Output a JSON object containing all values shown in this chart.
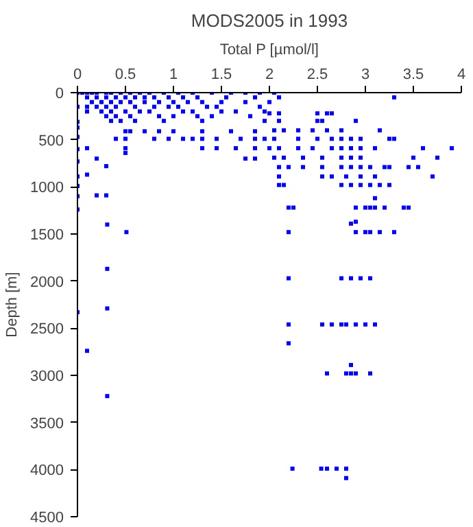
{
  "chart_data": {
    "type": "scatter",
    "title": "MODS2005 in 1993",
    "xlabel": "Total P [µmol/l]",
    "ylabel": "Depth [m]",
    "xlim": [
      0,
      4
    ],
    "ylim": [
      4500,
      0
    ],
    "xticks": [
      0,
      0.5,
      1,
      1.5,
      2,
      2.5,
      3,
      3.5,
      4
    ],
    "yticks": [
      0,
      500,
      1000,
      1500,
      2000,
      2500,
      3000,
      3500,
      4000,
      4500
    ],
    "grid": false,
    "marker": "square",
    "series": [
      {
        "color": "#0000ff",
        "x": [
          0.05,
          0.1,
          0.15,
          0.2,
          0.3,
          0.35,
          0.45,
          0.55,
          0.65,
          0.75,
          0.9,
          1.05,
          1.2,
          1.4,
          1.6,
          1.75,
          1.9,
          2.05,
          0.1,
          0.2,
          0.3,
          0.4,
          0.5,
          0.6,
          0.7,
          0.8,
          0.95,
          1.1,
          1.25,
          1.55,
          1.85,
          2.1,
          3.3,
          0.15,
          0.25,
          0.35,
          0.45,
          0.55,
          0.7,
          0.85,
          1.0,
          1.15,
          1.3,
          1.5,
          1.75,
          2.0,
          0.1,
          0.2,
          0.3,
          0.4,
          0.6,
          0.8,
          0.95,
          1.05,
          1.35,
          1.45,
          1.9,
          0.1,
          0.25,
          0.35,
          0.5,
          0.65,
          0.75,
          1.1,
          1.2,
          1.5,
          1.65,
          1.95,
          2.0,
          2.1,
          2.5,
          2.6,
          2.65,
          0.3,
          0.4,
          0.55,
          0.85,
          1.0,
          1.25,
          1.4,
          1.8,
          0.35,
          0.45,
          0.6,
          0.9,
          1.3,
          1.95,
          2.1,
          2.5,
          2.55,
          2.9,
          0.5,
          0.55,
          0.7,
          0.85,
          1.0,
          1.3,
          1.6,
          1.85,
          2.05,
          2.15,
          2.3,
          2.45,
          2.6,
          2.75,
          3.15,
          0.4,
          0.5,
          0.8,
          0.95,
          1.1,
          1.2,
          1.3,
          1.45,
          1.7,
          1.85,
          1.95,
          2.05,
          2.3,
          2.5,
          2.65,
          2.75,
          2.85,
          2.95,
          3.25,
          3.3,
          0.1,
          0.5,
          1.3,
          1.45,
          1.65,
          1.85,
          2.0,
          2.1,
          2.3,
          2.45,
          2.65,
          2.75,
          2.85,
          2.95,
          3.1,
          3.6,
          3.9,
          0.5,
          0.2,
          1.75,
          1.85,
          2.05,
          2.15,
          2.35,
          2.55,
          2.75,
          2.85,
          2.95,
          3.5,
          3.75,
          0.3,
          0.1,
          2.1,
          2.2,
          2.35,
          2.55,
          2.75,
          2.85,
          2.95,
          3.05,
          3.2,
          3.25,
          3.45,
          3.55,
          2.1,
          2.55,
          2.65,
          2.8,
          2.95,
          3.1,
          3.7,
          2.1,
          2.15,
          2.75,
          2.85,
          2.95,
          3.05,
          3.15,
          3.25,
          0.2,
          0.3,
          3.1,
          2.2,
          2.25,
          2.9,
          3.0,
          3.05,
          3.1,
          3.2,
          3.4,
          3.45,
          2.9,
          2.85,
          0.31,
          0.51,
          2.2,
          2.9,
          3.0,
          3.05,
          3.15,
          3.3,
          0.31,
          2.2,
          2.75,
          2.85,
          2.95,
          3.05,
          0.0,
          0.31,
          2.2,
          2.55,
          2.65,
          2.75,
          2.8,
          2.9,
          3.0,
          3.1,
          2.2,
          0.1,
          2.85,
          2.6,
          2.8,
          2.85,
          2.9,
          3.05,
          0.31,
          2.24,
          2.54,
          2.6,
          2.7,
          2.8,
          2.8,
          0,
          0,
          0,
          0,
          0,
          0,
          0,
          0,
          0,
          0,
          0
        ],
        "values": [
          0,
          0,
          0,
          0,
          0,
          0,
          0,
          0,
          0,
          0,
          0,
          0,
          0,
          0,
          0,
          0,
          0,
          0,
          50,
          50,
          50,
          50,
          50,
          50,
          50,
          50,
          50,
          50,
          50,
          50,
          50,
          50,
          50,
          100,
          100,
          100,
          100,
          100,
          100,
          100,
          100,
          100,
          100,
          100,
          100,
          100,
          150,
          150,
          150,
          150,
          150,
          150,
          150,
          150,
          150,
          150,
          150,
          200,
          200,
          200,
          200,
          200,
          200,
          200,
          200,
          200,
          200,
          200,
          220,
          220,
          220,
          220,
          220,
          250,
          250,
          250,
          250,
          250,
          250,
          250,
          250,
          300,
          300,
          300,
          300,
          300,
          300,
          300,
          300,
          300,
          300,
          410,
          410,
          410,
          410,
          410,
          410,
          410,
          410,
          400,
          400,
          400,
          400,
          400,
          400,
          400,
          490,
          490,
          490,
          490,
          490,
          490,
          490,
          490,
          490,
          490,
          490,
          490,
          490,
          490,
          490,
          490,
          490,
          490,
          490,
          490,
          590,
          590,
          590,
          590,
          590,
          590,
          590,
          590,
          590,
          590,
          590,
          590,
          590,
          590,
          590,
          590,
          590,
          640,
          700,
          700,
          700,
          690,
          690,
          690,
          690,
          690,
          690,
          690,
          690,
          690,
          780,
          870,
          790,
          790,
          790,
          790,
          790,
          790,
          790,
          790,
          790,
          790,
          790,
          790,
          890,
          890,
          890,
          890,
          890,
          890,
          890,
          980,
          980,
          980,
          980,
          980,
          980,
          980,
          980,
          1090,
          1090,
          1120,
          1220,
          1220,
          1220,
          1220,
          1220,
          1220,
          1220,
          1220,
          1220,
          1370,
          1390,
          1400,
          1480,
          1480,
          1480,
          1480,
          1480,
          1480,
          1480,
          1870,
          1970,
          1970,
          1970,
          1970,
          1970,
          2330,
          2290,
          2460,
          2460,
          2460,
          2460,
          2460,
          2460,
          2460,
          2460,
          2660,
          2740,
          2890,
          2980,
          2980,
          2980,
          2980,
          2980,
          3220,
          3990,
          3990,
          3990,
          3990,
          3990,
          4090,
          0,
          150,
          310,
          370,
          470,
          600,
          730,
          890,
          990,
          1100,
          1240
        ]
      }
    ]
  }
}
